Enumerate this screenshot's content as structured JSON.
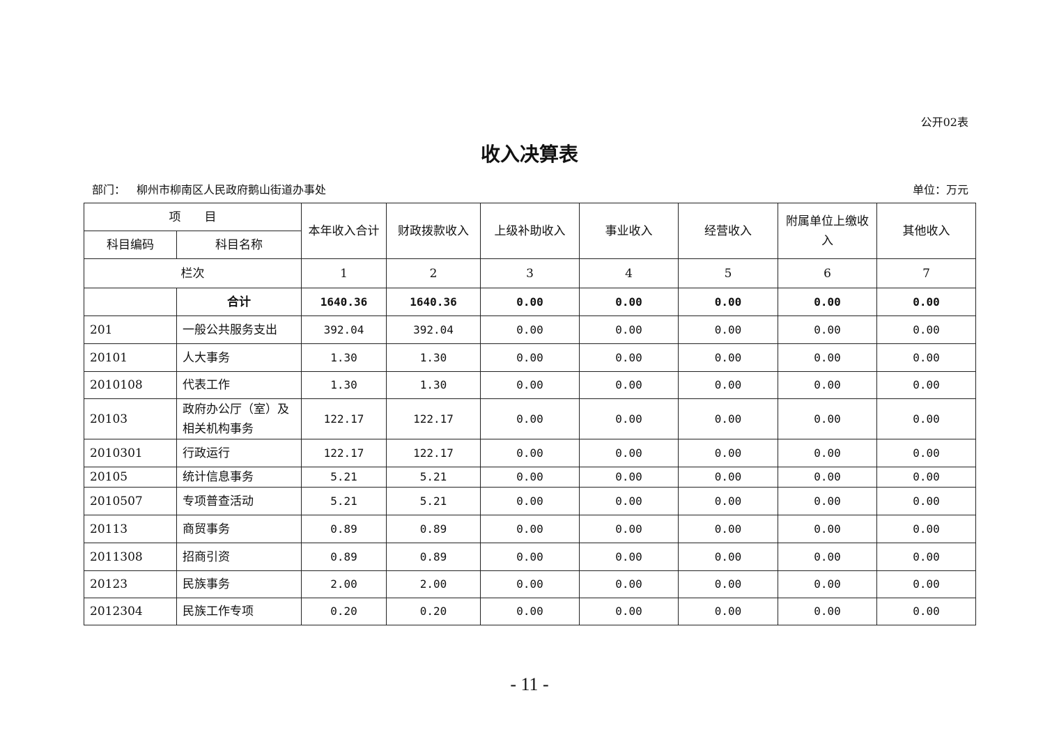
{
  "form_no": "公开02表",
  "title": "收入决算表",
  "dept_label": "部门：",
  "dept_name": "柳州市柳南区人民政府鹅山街道办事处",
  "unit": "单位：万元",
  "header": {
    "item": "项　　目",
    "code": "科目编码",
    "name": "科目名称",
    "columns": [
      "本年收入合计",
      "财政拨款收入",
      "上级补助收入",
      "事业收入",
      "经营收入",
      "附属单位上缴收入",
      "其他收入"
    ],
    "row_label": "栏次",
    "col_numbers": [
      "1",
      "2",
      "3",
      "4",
      "5",
      "6",
      "7"
    ]
  },
  "total": {
    "label": "合计",
    "values": [
      "1640.36",
      "1640.36",
      "0.00",
      "0.00",
      "0.00",
      "0.00",
      "0.00"
    ]
  },
  "rows": [
    {
      "code": "201",
      "name": "一般公共服务支出",
      "values": [
        "392.04",
        "392.04",
        "0.00",
        "0.00",
        "0.00",
        "0.00",
        "0.00"
      ]
    },
    {
      "code": "20101",
      "name": "人大事务",
      "values": [
        "1.30",
        "1.30",
        "0.00",
        "0.00",
        "0.00",
        "0.00",
        "0.00"
      ]
    },
    {
      "code": "2010108",
      "name": "代表工作",
      "values": [
        "1.30",
        "1.30",
        "0.00",
        "0.00",
        "0.00",
        "0.00",
        "0.00"
      ]
    },
    {
      "code": "20103",
      "name": "政府办公厅（室）及相关机构事务",
      "values": [
        "122.17",
        "122.17",
        "0.00",
        "0.00",
        "0.00",
        "0.00",
        "0.00"
      ]
    },
    {
      "code": "2010301",
      "name": "行政运行",
      "values": [
        "122.17",
        "122.17",
        "0.00",
        "0.00",
        "0.00",
        "0.00",
        "0.00"
      ]
    },
    {
      "code": "20105",
      "name": "统计信息事务",
      "values": [
        "5.21",
        "5.21",
        "0.00",
        "0.00",
        "0.00",
        "0.00",
        "0.00"
      ]
    },
    {
      "code": "2010507",
      "name": "专项普查活动",
      "values": [
        "5.21",
        "5.21",
        "0.00",
        "0.00",
        "0.00",
        "0.00",
        "0.00"
      ]
    },
    {
      "code": "20113",
      "name": "商贸事务",
      "values": [
        "0.89",
        "0.89",
        "0.00",
        "0.00",
        "0.00",
        "0.00",
        "0.00"
      ]
    },
    {
      "code": "2011308",
      "name": "招商引资",
      "values": [
        "0.89",
        "0.89",
        "0.00",
        "0.00",
        "0.00",
        "0.00",
        "0.00"
      ]
    },
    {
      "code": "20123",
      "name": "民族事务",
      "values": [
        "2.00",
        "2.00",
        "0.00",
        "0.00",
        "0.00",
        "0.00",
        "0.00"
      ]
    },
    {
      "code": "2012304",
      "name": "民族工作专项",
      "values": [
        "0.20",
        "0.20",
        "0.00",
        "0.00",
        "0.00",
        "0.00",
        "0.00"
      ]
    }
  ],
  "page_number": "- 11 -"
}
